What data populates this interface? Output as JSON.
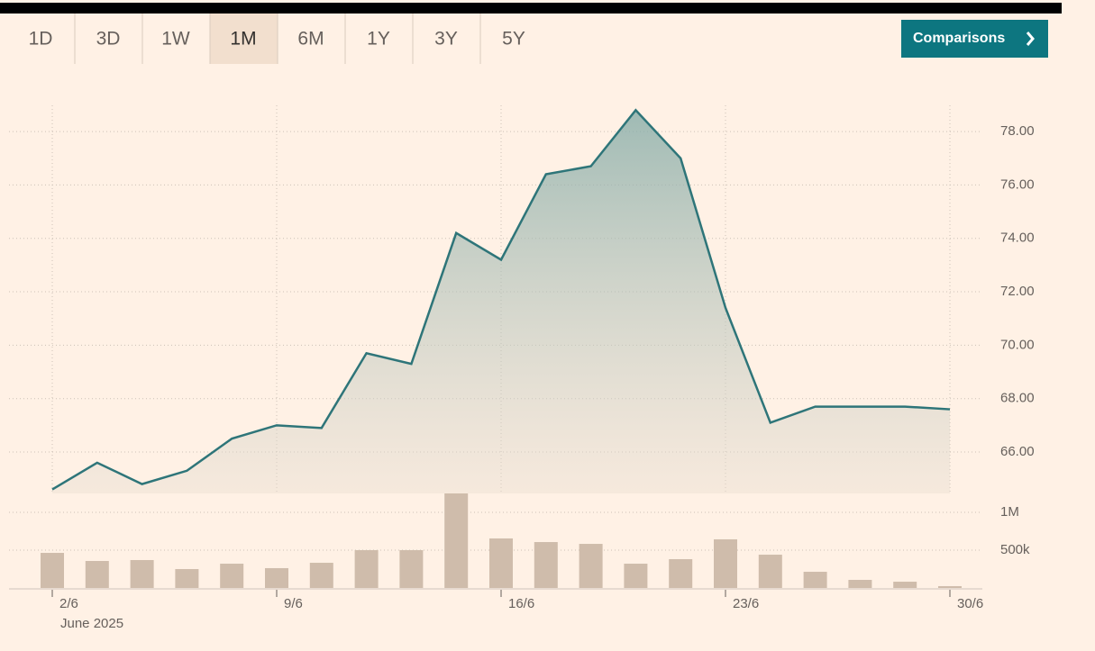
{
  "controls": {
    "ranges": [
      {
        "label": "1D"
      },
      {
        "label": "3D"
      },
      {
        "label": "1W"
      },
      {
        "label": "1M",
        "active": true
      },
      {
        "label": "6M"
      },
      {
        "label": "1Y"
      },
      {
        "label": "3Y"
      },
      {
        "label": "5Y"
      }
    ],
    "comparisons": "Comparisons"
  },
  "chart_data": [
    {
      "type": "line",
      "xlabel": "June 2025",
      "categories": [
        "2/6",
        null,
        null,
        null,
        null,
        "9/6",
        null,
        null,
        null,
        null,
        "16/6",
        null,
        null,
        null,
        null,
        "23/6",
        null,
        null,
        null,
        null,
        "30/6"
      ],
      "values": [
        64.6,
        65.6,
        64.8,
        65.3,
        66.5,
        67.0,
        66.9,
        69.7,
        69.3,
        74.2,
        73.2,
        76.4,
        76.7,
        78.8,
        77.0,
        71.4,
        67.1,
        67.7,
        67.7,
        67.7,
        67.6
      ],
      "color": "#2e7579",
      "ylim": [
        64.45,
        78.98
      ],
      "yticks": [
        {
          "value": 66,
          "label": "66.00"
        },
        {
          "value": 68,
          "label": "68.00"
        },
        {
          "value": 70,
          "label": "70.00"
        },
        {
          "value": 72,
          "label": "72.00"
        },
        {
          "value": 74,
          "label": "74.00"
        },
        {
          "value": 76,
          "label": "76.00"
        },
        {
          "value": 78,
          "label": "78.00"
        }
      ],
      "grid": true
    },
    {
      "type": "bar",
      "values": [
        464000,
        357000,
        369000,
        250000,
        321000,
        262000,
        333000,
        500000,
        500000,
        1250000,
        655000,
        607000,
        583000,
        321000,
        381000,
        643000,
        440000,
        214000,
        107000,
        83000,
        24000
      ],
      "color": "#cfbcab",
      "ylim": [
        0,
        1250000
      ],
      "yticks": [
        {
          "value": 500000,
          "label": "500k"
        },
        {
          "value": 1000000,
          "label": "1M"
        }
      ],
      "grid": true
    }
  ]
}
